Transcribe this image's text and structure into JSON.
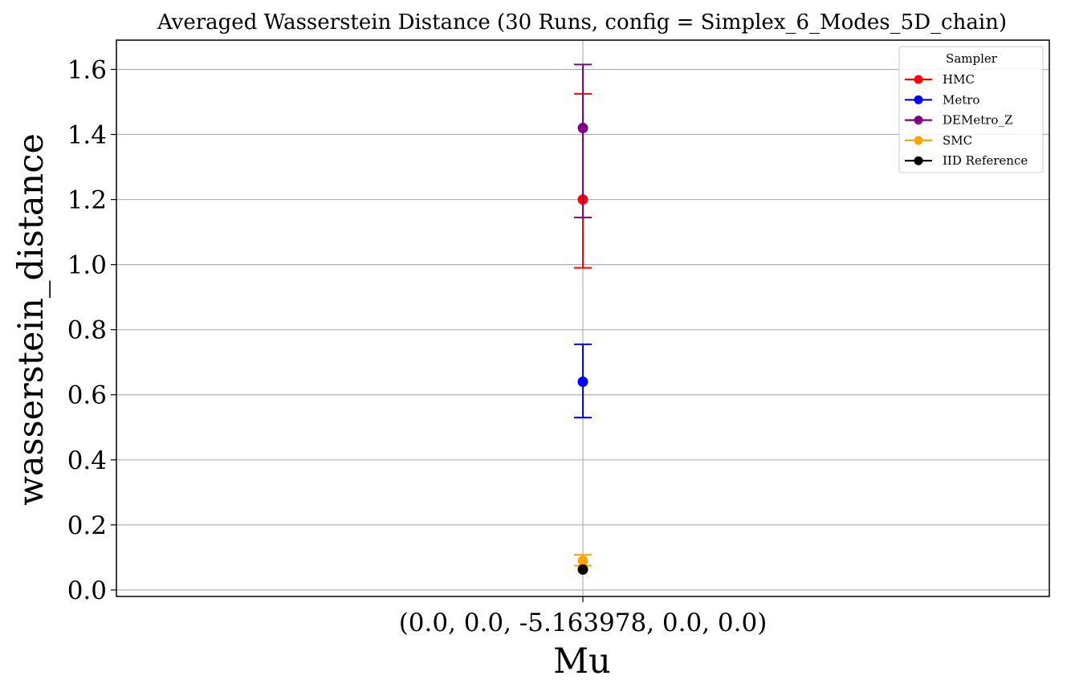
{
  "chart_data": {
    "type": "scatter",
    "title": "Averaged Wasserstein Distance (30 Runs, config = Simplex_6_Modes_5D_chain)",
    "xlabel": "Mu",
    "ylabel": "wasserstein_distance",
    "categories": [
      "(0.0, 0.0, -5.163978, 0.0, 0.0)"
    ],
    "ylim": [
      -0.02,
      1.69
    ],
    "yticks": [
      0.0,
      0.2,
      0.4,
      0.6,
      0.8,
      1.0,
      1.2,
      1.4,
      1.6
    ],
    "ytick_labels": [
      "0.0",
      "0.2",
      "0.4",
      "0.6",
      "0.8",
      "1.0",
      "1.2",
      "1.4",
      "1.6"
    ],
    "grid": true,
    "legend": {
      "title": "Sampler",
      "placement": "top-right"
    },
    "series": [
      {
        "name": "HMC",
        "color": "#ff0000",
        "values": [
          1.2
        ],
        "err_low": [
          0.99
        ],
        "err_high": [
          1.525
        ]
      },
      {
        "name": "Metro",
        "color": "#0000ff",
        "values": [
          0.64
        ],
        "err_low": [
          0.53
        ],
        "err_high": [
          0.755
        ]
      },
      {
        "name": "DEMetro_Z",
        "color": "#800080",
        "values": [
          1.42
        ],
        "err_low": [
          1.145
        ],
        "err_high": [
          1.615
        ]
      },
      {
        "name": "SMC",
        "color": "#ffa500",
        "values": [
          0.09
        ],
        "err_low": [
          0.075
        ],
        "err_high": [
          0.108
        ]
      },
      {
        "name": "IID Reference",
        "color": "#000000",
        "values": [
          0.063
        ],
        "err_low": [
          0.063
        ],
        "err_high": [
          0.063
        ]
      }
    ]
  }
}
